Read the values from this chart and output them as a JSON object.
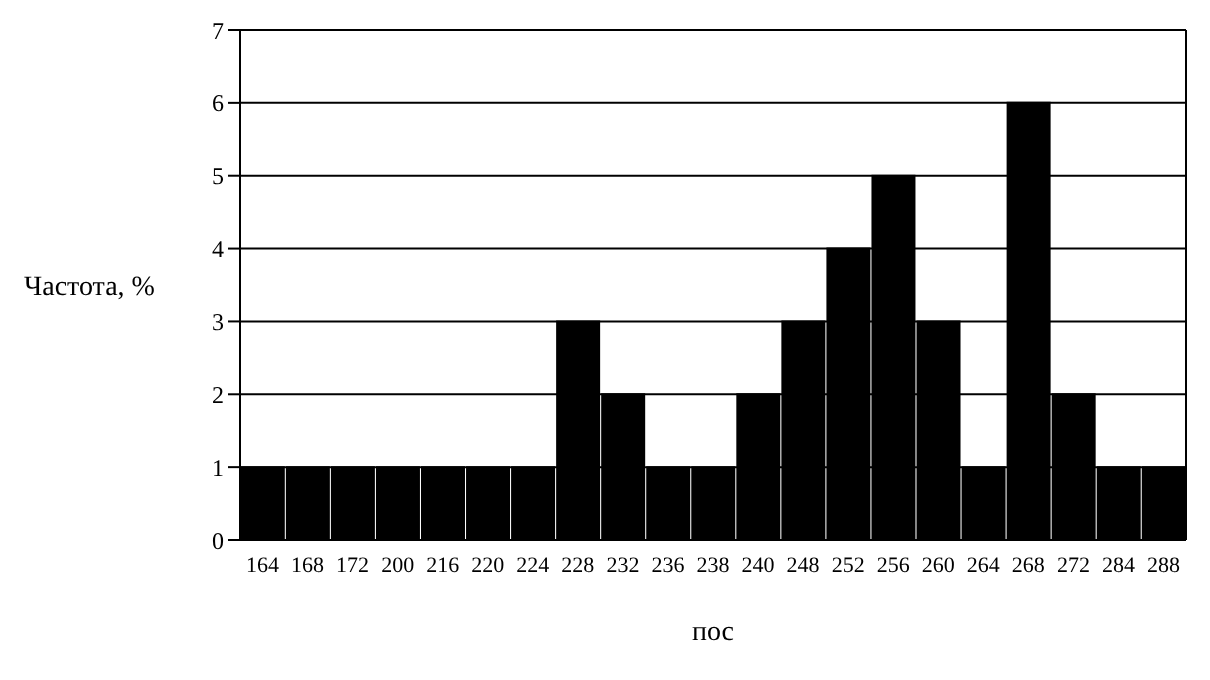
{
  "chart_data": {
    "type": "bar",
    "xlabel": "пос",
    "ylabel": "Частота, %",
    "categories": [
      "164",
      "168",
      "172",
      "200",
      "216",
      "220",
      "224",
      "228",
      "232",
      "236",
      "238",
      "240",
      "248",
      "252",
      "256",
      "260",
      "264",
      "268",
      "272",
      "284",
      "288"
    ],
    "values": [
      1,
      1,
      1,
      1,
      1,
      1,
      1,
      3,
      2,
      1,
      1,
      2,
      3,
      4,
      5,
      3,
      1,
      6,
      2,
      1,
      1
    ],
    "color": "#000000",
    "ylim": [
      0,
      7
    ],
    "yticks": [
      0,
      1,
      2,
      3,
      4,
      5,
      6,
      7
    ],
    "grid": "y",
    "legend": false
  }
}
